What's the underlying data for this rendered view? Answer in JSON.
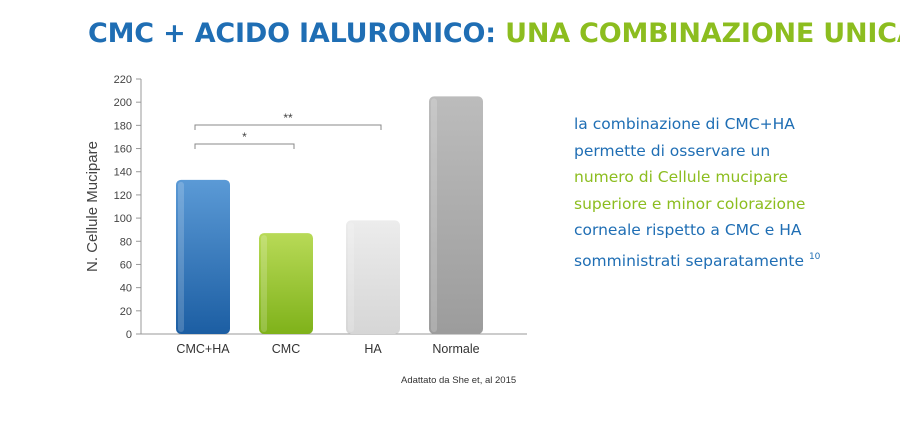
{
  "header": {
    "title_part1": "CMC + ACIDO IALURONICO:",
    "title_part2": "UNA COMBINAZIONE UNICA"
  },
  "description": {
    "line1": "la combinazione di CMC+HA",
    "line2": "permette di osservare un",
    "line3_highlight": "numero di Cellule mucipare",
    "line4_highlight": "superiore e minor colorazione",
    "line5": "corneale rispetto a CMC e HA",
    "line6": "somministrati separatamente",
    "reference": "10"
  },
  "source_note": "Adattato da She et, al 2015",
  "colors": {
    "blue": "#1f6eb4",
    "green": "#8cbd1f",
    "light_gray": "#e0e0e0",
    "dark_gray": "#a8a8a8"
  },
  "chart_data": {
    "type": "bar",
    "title": "",
    "xlabel": "",
    "ylabel": "N. Cellule Mucipare",
    "categories": [
      "CMC+HA",
      "CMC",
      "HA",
      "Normale"
    ],
    "values": [
      133,
      87,
      98,
      205
    ],
    "bar_colors": [
      "blue",
      "green",
      "light_gray",
      "dark_gray"
    ],
    "ylim": [
      0,
      220
    ],
    "yticks": [
      0,
      20,
      40,
      60,
      80,
      100,
      120,
      140,
      160,
      180,
      200,
      220
    ],
    "grid": false,
    "legend": "none",
    "significance": [
      {
        "label": "*",
        "from": "CMC+HA",
        "to": "CMC"
      },
      {
        "label": "**",
        "from": "CMC+HA",
        "to": "HA"
      }
    ]
  }
}
